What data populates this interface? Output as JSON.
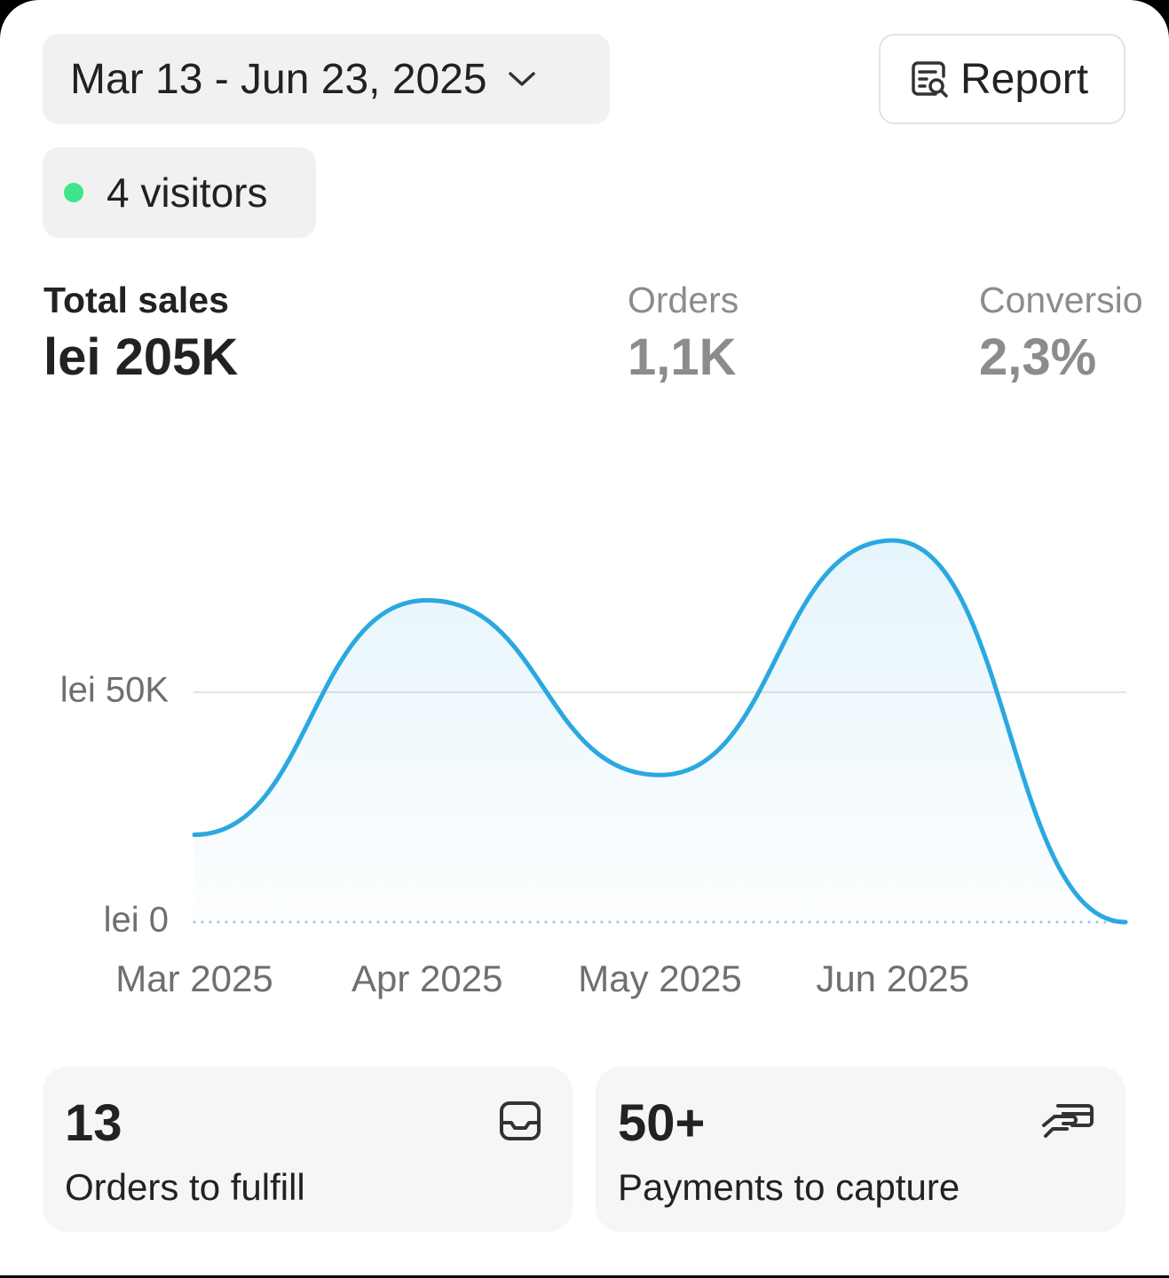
{
  "header": {
    "date_range": "Mar 13 - Jun 23, 2025",
    "report": "Report",
    "visitors": "4 visitors"
  },
  "metrics": [
    {
      "label": "Total sales",
      "value": "lei 205K"
    },
    {
      "label": "Orders",
      "value": "1,1K"
    },
    {
      "label": "Conversio",
      "value": "2,3%"
    }
  ],
  "chart_data": {
    "type": "line",
    "categories": [
      "Mar 2025",
      "Apr 2025",
      "May 2025",
      "Jun 2025",
      null
    ],
    "values": [
      19000,
      70000,
      32000,
      83000,
      0
    ],
    "color": "#2aa8e0",
    "ylim": [
      0,
      100000
    ],
    "yticks": [
      {
        "value": 0,
        "label": "lei 0"
      },
      {
        "value": 50000,
        "label": "lei 50K"
      }
    ],
    "grid": true
  },
  "cards": [
    {
      "value": "13",
      "label": "Orders to fulfill"
    },
    {
      "value": "50+",
      "label": "Payments to capture"
    }
  ]
}
